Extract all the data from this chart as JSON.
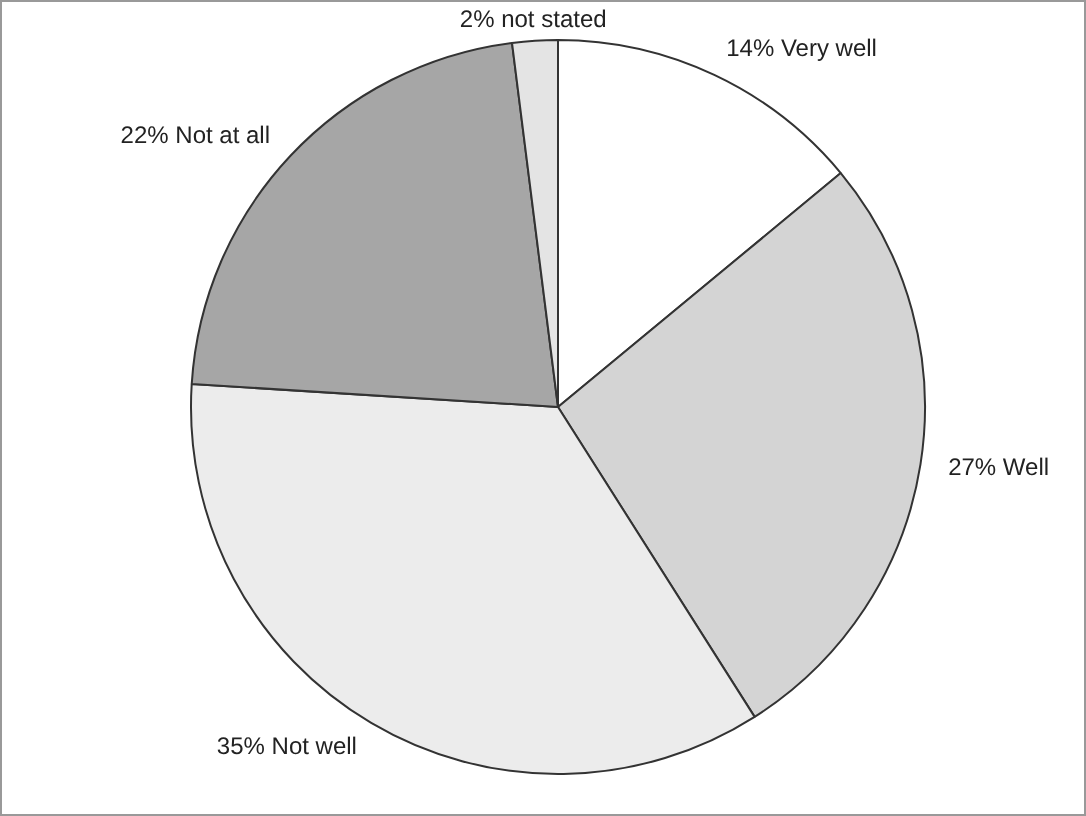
{
  "chart_data": {
    "type": "pie",
    "categories": [
      "Very well",
      "Well",
      "Not well",
      "Not at all",
      "not stated"
    ],
    "values": [
      14,
      27,
      35,
      22,
      2
    ],
    "value_labels": [
      "14%",
      "27%",
      "35%",
      "22%",
      "2%"
    ],
    "colors": [
      "#ffffff",
      "#d4d4d4",
      "#ececec",
      "#a6a6a6",
      "#e4e4e4"
    ],
    "legend": false
  }
}
